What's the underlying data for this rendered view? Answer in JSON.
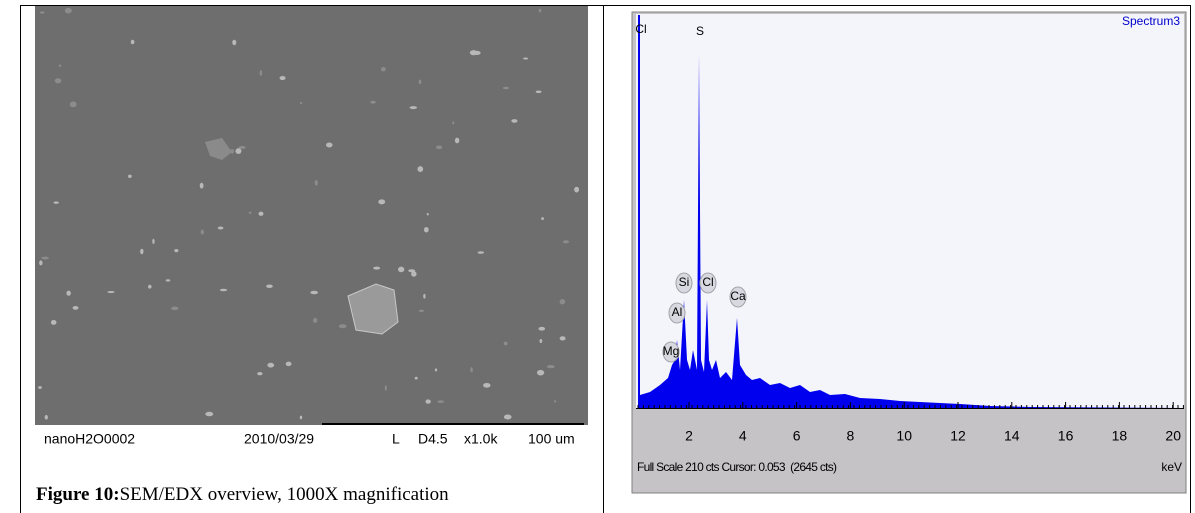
{
  "sem": {
    "sample": "nanoH2O0002",
    "date": "2010/03/29",
    "mode": "L",
    "wd": "D4.5",
    "mag": "x1.0k",
    "scale": "100 um"
  },
  "caption": {
    "label": "Figure 10:",
    "text": "SEM/EDX overview, 1000X magnification"
  },
  "spectrum": {
    "name": "Spectrum3",
    "peaks": [
      "Cl",
      "S",
      "Si",
      "Cl",
      "Ca",
      "Al",
      "Mg"
    ],
    "xticks": [
      2,
      4,
      6,
      8,
      10,
      12,
      14,
      16,
      18,
      20
    ],
    "status": "Full Scale 210 cts Cursor: 0.053  (2645 cts)",
    "unit": "keV"
  }
}
